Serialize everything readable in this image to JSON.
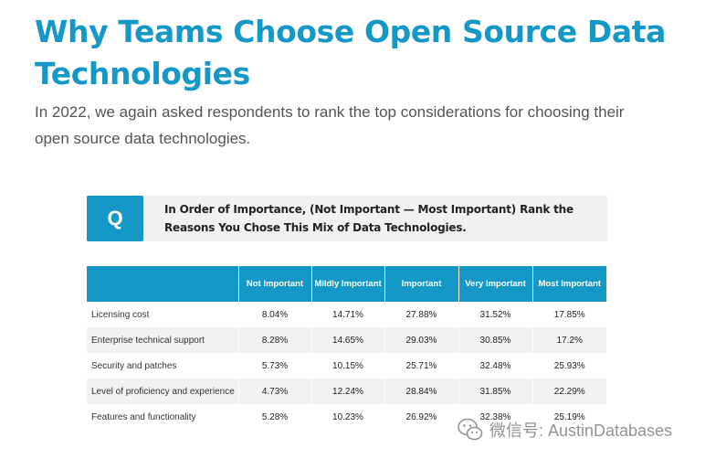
{
  "header": {
    "title": "Why Teams Choose Open Source Data Technologies",
    "subtitle": "In 2022, we again asked respondents to rank the top considerations for choosing their open source data technologies."
  },
  "question": {
    "badge": "Q",
    "text": "In Order of Importance, (Not Important — Most Important) Rank the Reasons You Chose This Mix of Data Technologies."
  },
  "table": {
    "columns": [
      "",
      "Not Important",
      "Mildly Important",
      "Important",
      "Very Important",
      "Most Important"
    ],
    "rows": [
      {
        "label": "Licensing cost",
        "values": [
          "8.04%",
          "14.71%",
          "27.88%",
          "31.52%",
          "17.85%"
        ]
      },
      {
        "label": "Enterprise technical support",
        "values": [
          "8.28%",
          "14.65%",
          "29.03%",
          "30.85%",
          "17.2%"
        ]
      },
      {
        "label": "Security and patches",
        "values": [
          "5.73%",
          "10.15%",
          "25.71%",
          "32.48%",
          "25.93%"
        ]
      },
      {
        "label": "Level of proficiency and experience",
        "values": [
          "4.73%",
          "12.24%",
          "28.84%",
          "31.85%",
          "22.29%"
        ]
      },
      {
        "label": "Features and functionality",
        "values": [
          "5.28%",
          "10.23%",
          "26.92%",
          "32.38%",
          "25.19%"
        ]
      }
    ]
  },
  "watermark": {
    "icon": "wechat-icon",
    "text": "微信号: AustinDatabases"
  },
  "colors": {
    "accent": "#1598c6",
    "question_bg": "#f1f1f1",
    "row_alt": "#f2f2f2"
  }
}
